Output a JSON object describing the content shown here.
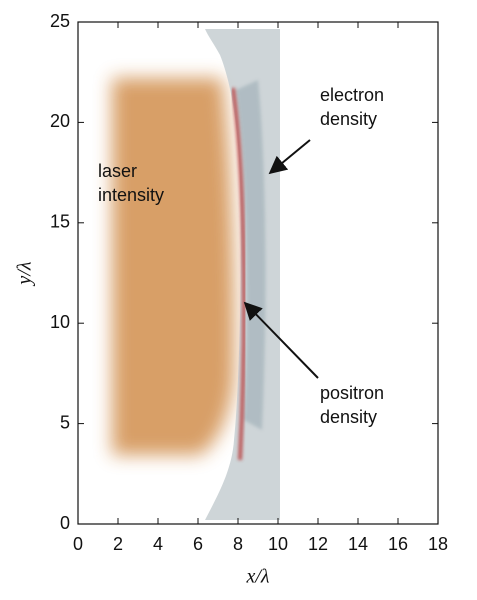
{
  "chart_data": {
    "type": "image",
    "x_label": "x/λ",
    "y_label": "y/λ",
    "xlim": [
      0,
      18
    ],
    "ylim": [
      0,
      25
    ],
    "xticks": [
      0,
      2,
      4,
      6,
      8,
      10,
      12,
      14,
      16,
      18
    ],
    "yticks": [
      0,
      5,
      10,
      15,
      20,
      25
    ],
    "grid": false,
    "annotations": [
      {
        "lines": [
          "laser",
          "intensity"
        ]
      },
      {
        "lines": [
          "electron",
          "density"
        ]
      },
      {
        "lines": [
          "positron",
          "density"
        ]
      }
    ]
  }
}
